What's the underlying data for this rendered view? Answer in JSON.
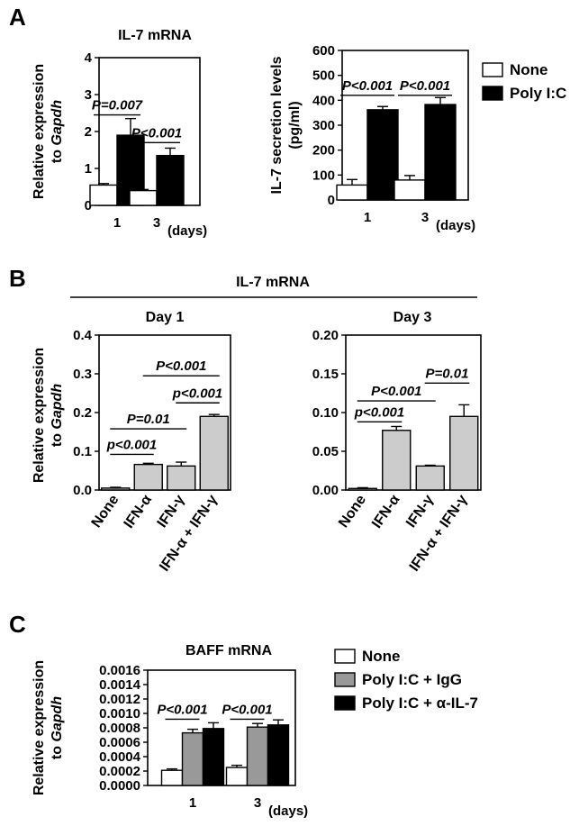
{
  "panel_labels": {
    "a": "A",
    "b": "B",
    "c": "C"
  },
  "panel_b_header": "IL-7 mRNA",
  "colors": {
    "none": "#ffffff",
    "poly_ic": "#000000",
    "ifn": "#cccccc",
    "igg": "#999999",
    "il7": "#000000"
  },
  "chart_data": [
    {
      "id": "a1",
      "type": "bar",
      "title": "IL-7 mRNA",
      "ylabel_parts": [
        "Relative expression",
        "to ",
        "Gapdh"
      ],
      "xunit": "(days)",
      "categories": [
        "1",
        "3"
      ],
      "ylim": [
        0,
        4
      ],
      "yticks": [
        "0",
        "1",
        "2",
        "3",
        "4"
      ],
      "series": [
        {
          "name": "None",
          "values": [
            0.55,
            0.4
          ],
          "errors": [
            0.04,
            0.03
          ],
          "fill": "#ffffff"
        },
        {
          "name": "Poly I:C",
          "values": [
            1.9,
            1.35
          ],
          "errors": [
            0.45,
            0.2
          ],
          "fill": "#000000"
        }
      ],
      "annotations": [
        {
          "text": "P=0.007",
          "category": 0,
          "level": 2.45
        },
        {
          "text": "P<0.001",
          "category": 1,
          "level": 1.7
        }
      ]
    },
    {
      "id": "a2",
      "type": "bar",
      "title": "",
      "ylabel_parts": [
        "IL-7 secretion levels",
        "(pg/ml)"
      ],
      "xunit": "(days)",
      "categories": [
        "1",
        "3"
      ],
      "ylim": [
        0,
        600
      ],
      "yticks": [
        "0",
        "100",
        "200",
        "300",
        "400",
        "500",
        "600"
      ],
      "series": [
        {
          "name": "None",
          "values": [
            60,
            80
          ],
          "errors": [
            22,
            18
          ],
          "fill": "#ffffff"
        },
        {
          "name": "Poly I:C",
          "values": [
            362,
            383
          ],
          "errors": [
            13,
            28
          ],
          "fill": "#000000"
        }
      ],
      "annotations": [
        {
          "text": "P<0.001",
          "category": 0,
          "level": 420
        },
        {
          "text": "P<0.001",
          "category": 1,
          "level": 420
        }
      ],
      "legend": [
        {
          "label": "None",
          "fill": "#ffffff"
        },
        {
          "label": "Poly I:C",
          "fill": "#000000"
        }
      ]
    },
    {
      "id": "b1",
      "type": "bar",
      "title": "Day 1",
      "ylabel_parts": [
        "Relative expression",
        "to ",
        "Gapdh"
      ],
      "categories": [
        "None",
        "IFN-α",
        "IFN-γ",
        "IFN-α + IFN-γ"
      ],
      "ylim": [
        0,
        0.4
      ],
      "yticks": [
        "0.0",
        "0.1",
        "0.2",
        "0.3",
        "0.4"
      ],
      "series": [
        {
          "name": "",
          "values": [
            0.005,
            0.066,
            0.062,
            0.19
          ],
          "errors": [
            0.002,
            0.003,
            0.01,
            0.005
          ],
          "fills": [
            "#cccccc",
            "#cccccc",
            "#cccccc",
            "#cccccc"
          ]
        }
      ],
      "annotations": [
        {
          "text": "p<0.001",
          "from": 0,
          "to": 1,
          "level": 0.092
        },
        {
          "text": "P=0.01",
          "from": 0,
          "to": 2,
          "level": 0.158
        },
        {
          "text": "p<0.001",
          "from": 2,
          "to": 3,
          "level": 0.225
        },
        {
          "text": "P<0.001",
          "from": 1,
          "to": 3,
          "level": 0.295
        }
      ]
    },
    {
      "id": "b2",
      "type": "bar",
      "title": "Day 3",
      "ylabel_parts": [],
      "categories": [
        "None",
        "IFN-α",
        "IFN-γ",
        "IFN-α + IFN-γ"
      ],
      "ylim": [
        0,
        0.2
      ],
      "yticks": [
        "0.00",
        "0.05",
        "0.10",
        "0.15",
        "0.20"
      ],
      "series": [
        {
          "name": "",
          "values": [
            0.002,
            0.077,
            0.031,
            0.095
          ],
          "errors": [
            0.001,
            0.005,
            0.001,
            0.015
          ],
          "fills": [
            "#cccccc",
            "#cccccc",
            "#cccccc",
            "#cccccc"
          ]
        }
      ],
      "annotations": [
        {
          "text": "p<0.001",
          "from": 0,
          "to": 1,
          "level": 0.088
        },
        {
          "text": "P<0.001",
          "from": 0,
          "to": 2,
          "level": 0.115
        },
        {
          "text": "P=0.01",
          "from": 2,
          "to": 3,
          "level": 0.138
        }
      ]
    },
    {
      "id": "c1",
      "type": "bar",
      "title": "BAFF mRNA",
      "ylabel_parts": [
        "Relative expression",
        "to ",
        "Gapdh"
      ],
      "xunit": "(days)",
      "categories": [
        "1",
        "3"
      ],
      "ylim": [
        0,
        0.0016
      ],
      "yticks": [
        "0.0000",
        "0.0002",
        "0.0004",
        "0.0006",
        "0.0008",
        "0.0010",
        "0.0012",
        "0.0014",
        "0.0016"
      ],
      "series": [
        {
          "name": "None",
          "values": [
            0.00021,
            0.00025
          ],
          "errors": [
            2e-05,
            3e-05
          ],
          "fill": "#ffffff"
        },
        {
          "name": "Poly I:C + IgG",
          "values": [
            0.00073,
            0.00081
          ],
          "errors": [
            5e-05,
            5e-05
          ],
          "fill": "#999999"
        },
        {
          "name": "Poly I:C + α-IL-7",
          "values": [
            0.00079,
            0.00084
          ],
          "errors": [
            8e-05,
            7e-05
          ],
          "fill": "#000000"
        }
      ],
      "annotations": [
        {
          "text": "P<0.001",
          "category": 0,
          "level": 0.00092
        },
        {
          "text": "P<0.001",
          "category": 1,
          "level": 0.00092
        }
      ],
      "legend": [
        {
          "label": "None",
          "fill": "#ffffff"
        },
        {
          "label": "Poly I:C + IgG",
          "fill": "#999999"
        },
        {
          "label": "Poly I:C + α-IL-7",
          "fill": "#000000"
        }
      ]
    }
  ]
}
